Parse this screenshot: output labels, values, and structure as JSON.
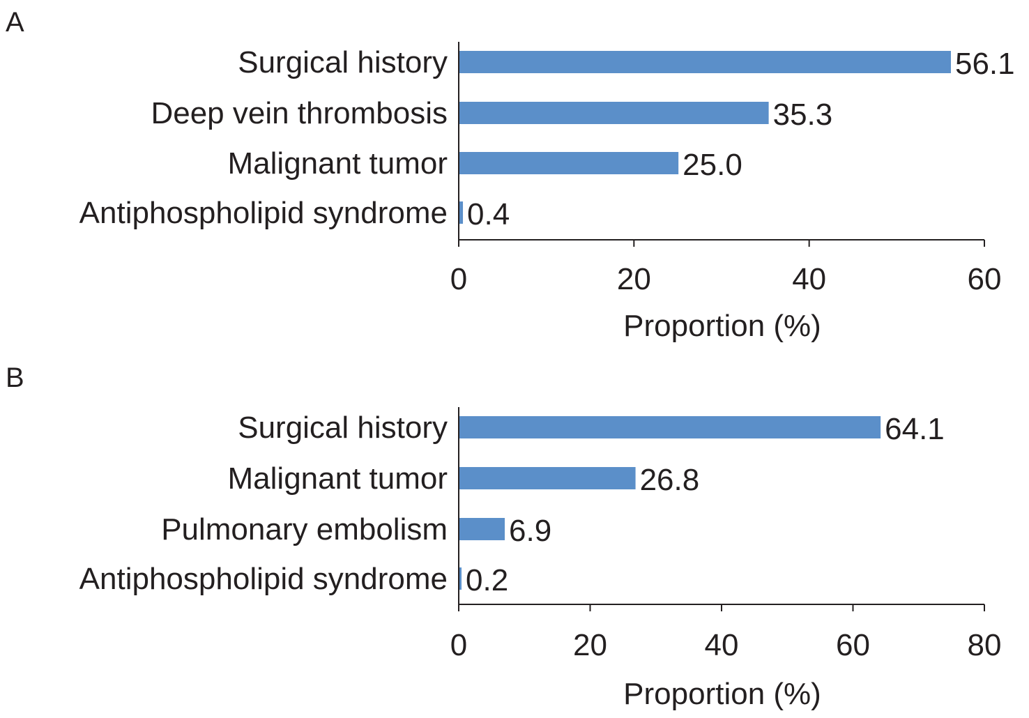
{
  "chart_data": [
    {
      "type": "bar",
      "orientation": "horizontal",
      "panel_label": "A",
      "categories": [
        "Surgical history",
        "Deep vein thrombosis",
        "Malignant tumor",
        "Antiphospholipid syndrome"
      ],
      "values": [
        56.1,
        35.3,
        25.0,
        0.4
      ],
      "value_labels": [
        "56.1",
        "35.3",
        "25.0",
        "0.4"
      ],
      "xlabel": "Proportion (%)",
      "xlim": [
        0,
        60
      ],
      "xticks": [
        0,
        20,
        40,
        60
      ],
      "xtick_labels": [
        "0",
        "20",
        "40",
        "60"
      ],
      "grid": false,
      "bar_color": "#5b8fc9"
    },
    {
      "type": "bar",
      "orientation": "horizontal",
      "panel_label": "B",
      "categories": [
        "Surgical history",
        "Malignant tumor",
        "Pulmonary embolism",
        "Antiphospholipid syndrome"
      ],
      "values": [
        64.1,
        26.8,
        6.9,
        0.2
      ],
      "value_labels": [
        "64.1",
        "26.8",
        "6.9",
        "0.2"
      ],
      "xlabel": "Proportion (%)",
      "xlim": [
        0,
        80
      ],
      "xticks": [
        0,
        20,
        40,
        60,
        80
      ],
      "xtick_labels": [
        "0",
        "20",
        "40",
        "60",
        "80"
      ],
      "grid": false,
      "bar_color": "#5b8fc9"
    }
  ]
}
